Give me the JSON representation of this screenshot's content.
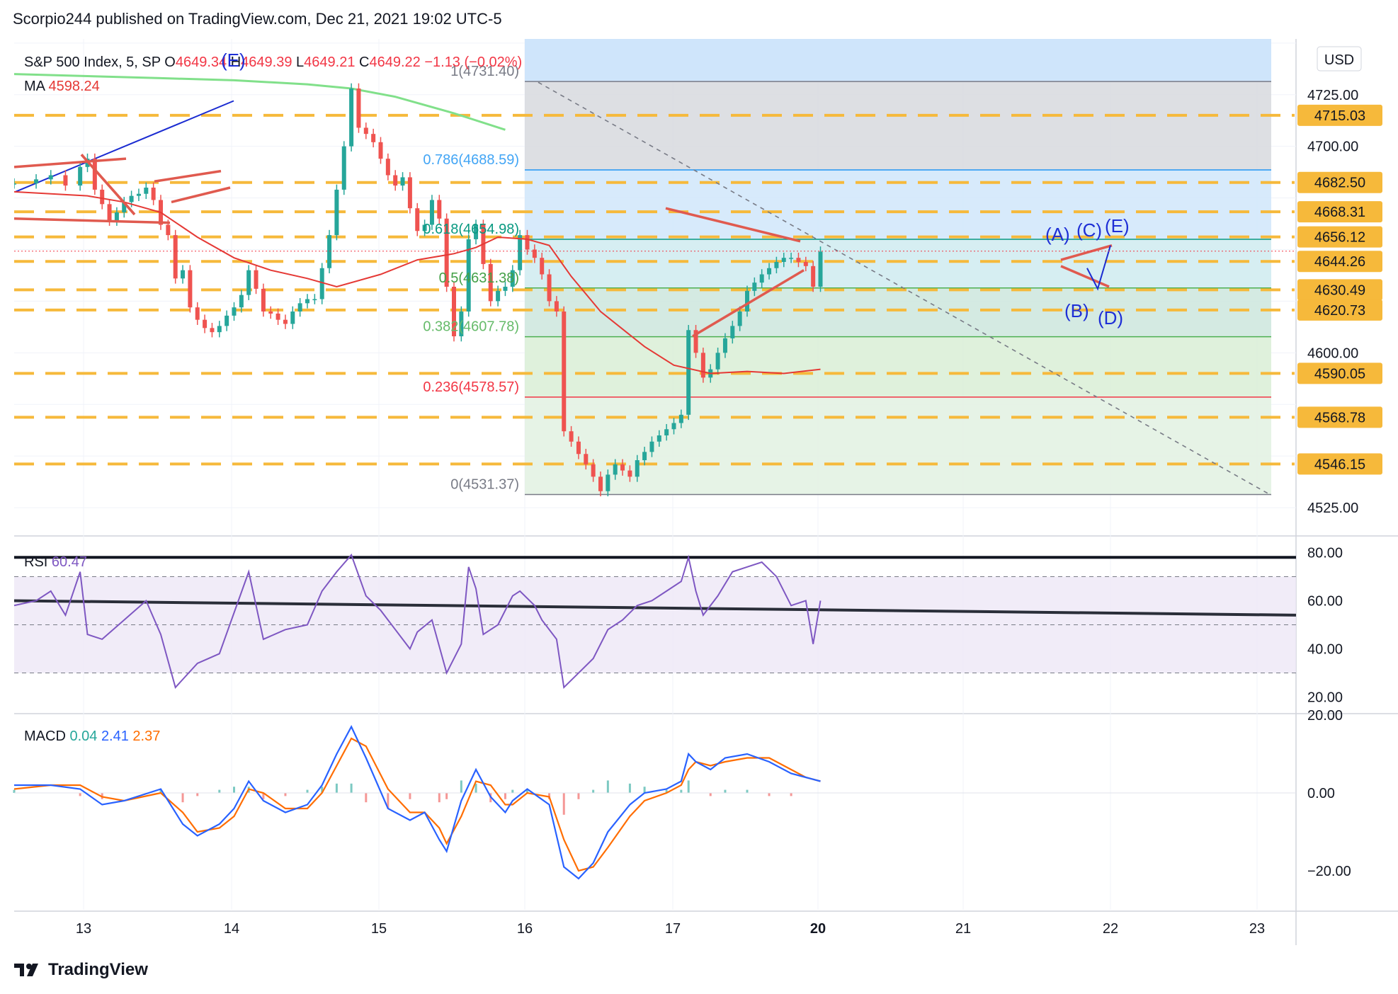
{
  "header": {
    "published": "Scorpio244 published on TradingView.com, Dec 21, 2021 19:02 UTC-5",
    "brand": "TradingView",
    "currency": "USD"
  },
  "legend": {
    "symbol": "S&P 500 Index, 5, SP",
    "o_label": "O",
    "o_value": "4649.34",
    "h_label": "H",
    "h_value": "4649.39",
    "l_label": "L",
    "l_value": "4649.21",
    "c_label": "C",
    "c_value": "4649.22",
    "change": "−1.13 (−0.02%)",
    "ma_label": "MA",
    "ma_value": "4598.24",
    "rsi_label": "RSI",
    "rsi_value": "60.47",
    "macd_label": "MACD",
    "macd_hist": "0.04",
    "macd_line": "2.41",
    "macd_signal": "2.37"
  },
  "colors": {
    "up": "#26a69a",
    "down": "#ef5350",
    "ma": "#e53935",
    "ma_long": "#81e08a",
    "fib_blue": "#2196f3",
    "fib_green": "#4caf50",
    "fib_red": "#f44336",
    "dash_level": "#f6b93b",
    "rsi": "#7e57c2",
    "macd": "#2962ff",
    "signal": "#ff6d00",
    "wave_label": "#1e2fd6",
    "trendline": "#e05a4f"
  },
  "chart_data": [
    {
      "type": "candlestick",
      "title": "S&P 500 Index, 5, SP",
      "x_ticks": [
        "13",
        "14",
        "15",
        "16",
        "17",
        "20",
        "21",
        "22",
        "23"
      ],
      "y_ticks": [
        "4525.00",
        "4600.00",
        "4700.00",
        "4725.00"
      ],
      "ylim": [
        4512,
        4752
      ],
      "price_labels": [
        "4715.03",
        "4682.50",
        "4668.31",
        "4656.12",
        "4644.26",
        "4630.49",
        "4620.73",
        "4590.05",
        "4568.78",
        "4546.15"
      ],
      "fib_levels": [
        {
          "ratio": "1",
          "price": "4731.40"
        },
        {
          "ratio": "0.786",
          "price": "4688.59"
        },
        {
          "ratio": "0.618",
          "price": "4654.98"
        },
        {
          "ratio": "0.5",
          "price": "4631.38"
        },
        {
          "ratio": "0.382",
          "price": "4607.78"
        },
        {
          "ratio": "0.236",
          "price": "4578.57"
        },
        {
          "ratio": "0",
          "price": "4531.37"
        }
      ],
      "wave_labels": [
        "(E)",
        "(A)",
        "(C)",
        "(E)",
        "(B)",
        "(D)"
      ],
      "close_path": [
        [
          0,
          4682
        ],
        [
          3,
          4684
        ],
        [
          5,
          4686
        ],
        [
          7,
          4681
        ],
        [
          9,
          4690
        ],
        [
          10,
          4694
        ],
        [
          11,
          4679
        ],
        [
          12,
          4672
        ],
        [
          13,
          4664
        ],
        [
          14,
          4668
        ],
        [
          15,
          4673
        ],
        [
          16,
          4676
        ],
        [
          17,
          4677
        ],
        [
          18,
          4680
        ],
        [
          19,
          4674
        ],
        [
          20,
          4662
        ],
        [
          21,
          4657
        ],
        [
          22,
          4636
        ],
        [
          23,
          4640
        ],
        [
          24,
          4622
        ],
        [
          25,
          4616
        ],
        [
          26,
          4612
        ],
        [
          27,
          4610
        ],
        [
          28,
          4613
        ],
        [
          29,
          4618
        ],
        [
          30,
          4622
        ],
        [
          31,
          4628
        ],
        [
          32,
          4640
        ],
        [
          33,
          4631
        ],
        [
          34,
          4620
        ],
        [
          35,
          4619
        ],
        [
          36,
          4616
        ],
        [
          37,
          4614
        ],
        [
          38,
          4620
        ],
        [
          39,
          4624
        ],
        [
          40,
          4626
        ],
        [
          41,
          4626
        ],
        [
          42,
          4641
        ],
        [
          43,
          4657
        ],
        [
          44,
          4679
        ],
        [
          45,
          4700
        ],
        [
          46,
          4728
        ],
        [
          47,
          4709
        ],
        [
          48,
          4706
        ],
        [
          49,
          4702
        ],
        [
          50,
          4694
        ],
        [
          51,
          4686
        ],
        [
          52,
          4681
        ],
        [
          53,
          4685
        ],
        [
          54,
          4670
        ],
        [
          55,
          4659
        ],
        [
          56,
          4662
        ],
        [
          57,
          4674
        ],
        [
          58,
          4665
        ],
        [
          59,
          4632
        ],
        [
          60,
          4608
        ],
        [
          61,
          4620
        ],
        [
          62,
          4655
        ],
        [
          63,
          4662
        ],
        [
          64,
          4643
        ],
        [
          65,
          4625
        ],
        [
          66,
          4630
        ],
        [
          67,
          4632
        ],
        [
          68,
          4640
        ],
        [
          69,
          4657
        ],
        [
          70,
          4650
        ],
        [
          71,
          4646
        ],
        [
          72,
          4638
        ],
        [
          73,
          4625
        ],
        [
          74,
          4620
        ],
        [
          75,
          4562
        ],
        [
          76,
          4557
        ],
        [
          77,
          4551
        ],
        [
          78,
          4546
        ],
        [
          79,
          4540
        ],
        [
          80,
          4533
        ],
        [
          81,
          4541
        ],
        [
          82,
          4546
        ],
        [
          83,
          4543
        ],
        [
          84,
          4540
        ],
        [
          85,
          4548
        ],
        [
          86,
          4552
        ],
        [
          87,
          4557
        ],
        [
          88,
          4560
        ],
        [
          89,
          4563
        ],
        [
          90,
          4566
        ],
        [
          91,
          4570
        ],
        [
          92,
          4611
        ],
        [
          93,
          4600
        ],
        [
          94,
          4588
        ],
        [
          95,
          4592
        ],
        [
          96,
          4600
        ],
        [
          97,
          4607
        ],
        [
          98,
          4613
        ],
        [
          99,
          4620
        ],
        [
          100,
          4630
        ],
        [
          101,
          4634
        ],
        [
          102,
          4638
        ],
        [
          103,
          4641
        ],
        [
          104,
          4644
        ],
        [
          105,
          4646
        ],
        [
          106,
          4646
        ],
        [
          107,
          4644
        ],
        [
          108,
          4642
        ],
        [
          109,
          4632
        ],
        [
          110,
          4649
        ]
      ],
      "ma_path": [
        [
          0,
          4678
        ],
        [
          5,
          4677
        ],
        [
          10,
          4676
        ],
        [
          15,
          4673
        ],
        [
          20,
          4668
        ],
        [
          25,
          4656
        ],
        [
          30,
          4646
        ],
        [
          35,
          4640
        ],
        [
          40,
          4636
        ],
        [
          44,
          4632
        ],
        [
          50,
          4638
        ],
        [
          55,
          4645
        ],
        [
          60,
          4648
        ],
        [
          63,
          4651
        ],
        [
          66,
          4656
        ],
        [
          70,
          4655
        ],
        [
          73,
          4652
        ],
        [
          76,
          4637
        ],
        [
          80,
          4620
        ],
        [
          86,
          4603
        ],
        [
          90,
          4594
        ],
        [
          95,
          4590
        ],
        [
          100,
          4591
        ],
        [
          105,
          4590
        ],
        [
          110,
          4592
        ]
      ],
      "ma_long_path": [
        [
          0,
          4735
        ],
        [
          10,
          4734
        ],
        [
          20,
          4733
        ],
        [
          30,
          4732
        ],
        [
          40,
          4730
        ],
        [
          46,
          4728
        ],
        [
          52,
          4724
        ],
        [
          60,
          4716
        ],
        [
          67,
          4708
        ]
      ]
    },
    {
      "type": "line",
      "title": "RSI",
      "y_ticks": [
        "20.00",
        "40.00",
        "60.00",
        "80.00"
      ],
      "ylim": [
        14,
        86
      ],
      "bands": [
        30,
        50,
        70
      ],
      "values": [
        [
          0,
          58
        ],
        [
          3,
          60
        ],
        [
          5,
          64
        ],
        [
          7,
          54
        ],
        [
          9,
          72
        ],
        [
          10,
          46
        ],
        [
          12,
          44
        ],
        [
          15,
          52
        ],
        [
          18,
          60
        ],
        [
          20,
          46
        ],
        [
          22,
          24
        ],
        [
          25,
          34
        ],
        [
          28,
          38
        ],
        [
          30,
          55
        ],
        [
          32,
          72
        ],
        [
          34,
          44
        ],
        [
          37,
          48
        ],
        [
          40,
          50
        ],
        [
          42,
          64
        ],
        [
          44,
          72
        ],
        [
          46,
          79
        ],
        [
          48,
          62
        ],
        [
          50,
          56
        ],
        [
          52,
          48
        ],
        [
          54,
          40
        ],
        [
          55,
          47
        ],
        [
          57,
          52
        ],
        [
          59,
          30
        ],
        [
          61,
          42
        ],
        [
          62,
          74
        ],
        [
          63,
          65
        ],
        [
          64,
          46
        ],
        [
          66,
          50
        ],
        [
          68,
          62
        ],
        [
          69,
          64
        ],
        [
          71,
          58
        ],
        [
          72,
          52
        ],
        [
          74,
          44
        ],
        [
          75,
          24
        ],
        [
          77,
          30
        ],
        [
          79,
          36
        ],
        [
          81,
          48
        ],
        [
          83,
          52
        ],
        [
          85,
          58
        ],
        [
          87,
          60
        ],
        [
          89,
          64
        ],
        [
          91,
          68
        ],
        [
          92,
          78
        ],
        [
          93,
          64
        ],
        [
          94,
          54
        ],
        [
          96,
          62
        ],
        [
          98,
          72
        ],
        [
          100,
          74
        ],
        [
          102,
          76
        ],
        [
          104,
          70
        ],
        [
          106,
          58
        ],
        [
          108,
          60
        ],
        [
          109,
          42
        ],
        [
          110,
          60
        ]
      ]
    },
    {
      "type": "line",
      "title": "MACD",
      "y_ticks": [
        "−20.00",
        "0.00",
        "20.00"
      ],
      "ylim": [
        -30,
        20
      ],
      "series": [
        {
          "name": "MACD",
          "values": [
            [
              0,
              2
            ],
            [
              5,
              2
            ],
            [
              9,
              1
            ],
            [
              12,
              -3
            ],
            [
              15,
              -2
            ],
            [
              20,
              1
            ],
            [
              23,
              -8
            ],
            [
              25,
              -11
            ],
            [
              28,
              -8
            ],
            [
              30,
              -4
            ],
            [
              32,
              3
            ],
            [
              34,
              -2
            ],
            [
              37,
              -5
            ],
            [
              40,
              -3
            ],
            [
              42,
              2
            ],
            [
              44,
              10
            ],
            [
              46,
              17
            ],
            [
              48,
              9
            ],
            [
              51,
              -4
            ],
            [
              54,
              -7
            ],
            [
              56,
              -5
            ],
            [
              58,
              -12
            ],
            [
              59,
              -15
            ],
            [
              61,
              -2
            ],
            [
              63,
              6
            ],
            [
              65,
              -1
            ],
            [
              67,
              -5
            ],
            [
              68,
              -2
            ],
            [
              70,
              1
            ],
            [
              73,
              -3
            ],
            [
              75,
              -19
            ],
            [
              77,
              -22
            ],
            [
              79,
              -18
            ],
            [
              81,
              -10
            ],
            [
              84,
              -3
            ],
            [
              86,
              0
            ],
            [
              89,
              1
            ],
            [
              91,
              3
            ],
            [
              92,
              10
            ],
            [
              93,
              8
            ],
            [
              95,
              6
            ],
            [
              97,
              9
            ],
            [
              100,
              10
            ],
            [
              103,
              8
            ],
            [
              106,
              5
            ],
            [
              108,
              4
            ],
            [
              110,
              3
            ]
          ]
        },
        {
          "name": "Signal",
          "values": [
            [
              0,
              1
            ],
            [
              5,
              2
            ],
            [
              9,
              2
            ],
            [
              12,
              -1
            ],
            [
              15,
              -2
            ],
            [
              20,
              0
            ],
            [
              23,
              -5
            ],
            [
              25,
              -10
            ],
            [
              28,
              -9
            ],
            [
              30,
              -6
            ],
            [
              32,
              1
            ],
            [
              34,
              0
            ],
            [
              37,
              -4
            ],
            [
              40,
              -4
            ],
            [
              42,
              0
            ],
            [
              44,
              7
            ],
            [
              46,
              14
            ],
            [
              48,
              12
            ],
            [
              51,
              1
            ],
            [
              54,
              -5
            ],
            [
              56,
              -5
            ],
            [
              58,
              -9
            ],
            [
              59,
              -13
            ],
            [
              61,
              -6
            ],
            [
              63,
              3
            ],
            [
              65,
              2
            ],
            [
              67,
              -3
            ],
            [
              68,
              -3
            ],
            [
              70,
              0
            ],
            [
              73,
              -1
            ],
            [
              75,
              -12
            ],
            [
              77,
              -20
            ],
            [
              79,
              -19
            ],
            [
              81,
              -14
            ],
            [
              84,
              -6
            ],
            [
              86,
              -2
            ],
            [
              89,
              0
            ],
            [
              91,
              2
            ],
            [
              92,
              6
            ],
            [
              93,
              8
            ],
            [
              95,
              7
            ],
            [
              97,
              8
            ],
            [
              100,
              9
            ],
            [
              103,
              9
            ],
            [
              106,
              6
            ],
            [
              108,
              4
            ],
            [
              110,
              3
            ]
          ]
        }
      ]
    }
  ]
}
